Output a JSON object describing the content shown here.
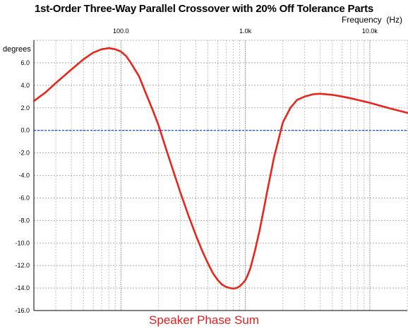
{
  "chart_data": {
    "type": "line",
    "title": "1st-Order Three-Way Parallel Crossover with 20% Off Tolerance Parts",
    "xlabel": "Frequency  (Hz)",
    "ylabel": "degrees",
    "footer": "Speaker Phase Sum",
    "x_scale": "log",
    "xlim": [
      20,
      20000
    ],
    "ylim": [
      -16,
      8
    ],
    "x_ticks": [
      {
        "value": 100,
        "label": "100.0"
      },
      {
        "value": 1000,
        "label": "1.0k"
      },
      {
        "value": 10000,
        "label": "10.0k"
      }
    ],
    "y_ticks": [
      {
        "value": 6,
        "label": "6.0"
      },
      {
        "value": 4,
        "label": "4.0"
      },
      {
        "value": 2,
        "label": "2.0"
      },
      {
        "value": 0,
        "label": "0.0"
      },
      {
        "value": -2,
        "label": "-2.0"
      },
      {
        "value": -4,
        "label": "-4.0"
      },
      {
        "value": -6,
        "label": "-6.0"
      },
      {
        "value": -8,
        "label": "-8.0"
      },
      {
        "value": -10,
        "label": "-10.0"
      },
      {
        "value": -12,
        "label": "-12.0"
      },
      {
        "value": -14,
        "label": "-14.0"
      },
      {
        "value": -16,
        "label": "-16.0"
      }
    ],
    "grid": true,
    "reference_line": {
      "y": 0,
      "color": "#1f5fd6",
      "style": "dotted"
    },
    "series": [
      {
        "color": "#e8261c",
        "x": [
          20,
          25,
          30,
          40,
          50,
          60,
          70,
          80,
          90,
          100,
          110,
          120,
          140,
          160,
          180,
          200,
          230,
          260,
          300,
          350,
          400,
          450,
          500,
          550,
          600,
          650,
          700,
          750,
          800,
          850,
          900,
          950,
          1000,
          1050,
          1100,
          1200,
          1300,
          1400,
          1500,
          1700,
          2000,
          2300,
          2600,
          3000,
          3500,
          4000,
          5000,
          6000,
          7000,
          8000,
          10000,
          12000,
          15000,
          20000
        ],
        "y": [
          2.6,
          3.4,
          4.2,
          5.4,
          6.3,
          6.9,
          7.2,
          7.3,
          7.2,
          7.0,
          6.6,
          6.0,
          4.8,
          3.2,
          1.8,
          0.5,
          -1.6,
          -3.4,
          -5.5,
          -7.6,
          -9.3,
          -10.7,
          -11.8,
          -12.7,
          -13.3,
          -13.7,
          -13.9,
          -14.0,
          -14.05,
          -14.0,
          -13.85,
          -13.6,
          -13.3,
          -12.8,
          -12.2,
          -10.6,
          -8.9,
          -7.1,
          -5.4,
          -2.4,
          0.7,
          2.0,
          2.7,
          3.0,
          3.2,
          3.25,
          3.15,
          3.0,
          2.85,
          2.7,
          2.45,
          2.2,
          1.9,
          1.55
        ]
      }
    ]
  }
}
